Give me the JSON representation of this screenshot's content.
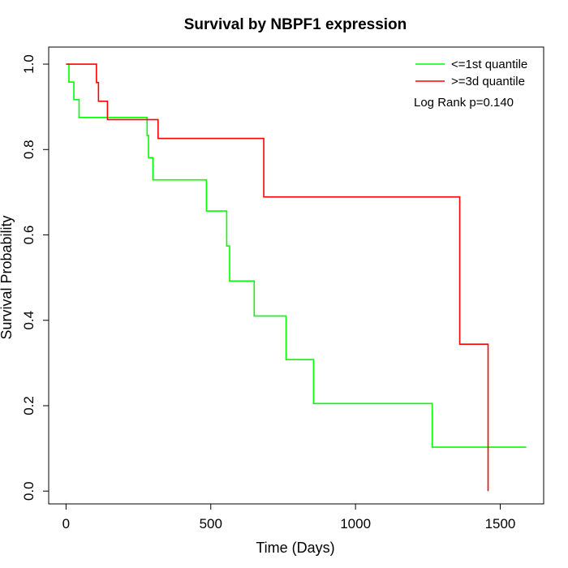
{
  "chart_data": {
    "type": "line",
    "title": "Survival by NBPF1 expression",
    "xlabel": "Time (Days)",
    "ylabel": "Survival Probability",
    "xlim": [
      -60,
      1650
    ],
    "ylim": [
      -0.03,
      1.04
    ],
    "xticks": [
      0,
      500,
      1000,
      1500
    ],
    "yticks": [
      0.0,
      0.2,
      0.4,
      0.6,
      0.8,
      1.0
    ],
    "xtick_labels": [
      "0",
      "500",
      "1000",
      "1500"
    ],
    "ytick_labels": [
      "0.0",
      "0.2",
      "0.4",
      "0.6",
      "0.8",
      "1.0"
    ],
    "grid": false,
    "legend_position": "top-right",
    "annotation": "Log Rank p=0.140",
    "series": [
      {
        "name": "<=1st quantile",
        "color": "#00ff00",
        "steps": [
          [
            5,
            1.0
          ],
          [
            10,
            0.958
          ],
          [
            27,
            0.917
          ],
          [
            45,
            0.875
          ],
          [
            280,
            0.833
          ],
          [
            285,
            0.781
          ],
          [
            300,
            0.729
          ],
          [
            485,
            0.656
          ],
          [
            555,
            0.574
          ],
          [
            565,
            0.492
          ],
          [
            650,
            0.41
          ],
          [
            760,
            0.308
          ],
          [
            855,
            0.205
          ],
          [
            1265,
            0.103
          ],
          [
            1590,
            0.103
          ]
        ]
      },
      {
        "name": ">=3d quantile",
        "color": "#ff0000",
        "steps": [
          [
            0,
            1.0
          ],
          [
            105,
            0.957
          ],
          [
            112,
            0.913
          ],
          [
            143,
            0.87
          ],
          [
            318,
            0.826
          ],
          [
            683,
            0.689
          ],
          [
            1360,
            0.344
          ],
          [
            1458,
            0.0
          ]
        ]
      }
    ]
  }
}
